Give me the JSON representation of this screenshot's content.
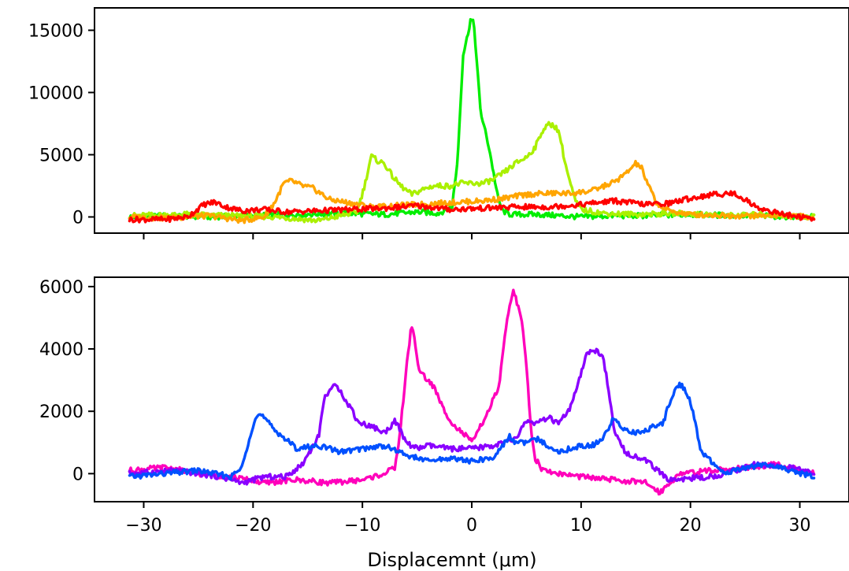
{
  "chart_data": [
    {
      "type": "line",
      "title": "",
      "xlabel": "",
      "ylabel": "",
      "xlim": [
        -34.5,
        34.5
      ],
      "ylim": [
        -1300,
        16800
      ],
      "xticks": [
        -30,
        -20,
        -10,
        0,
        10,
        20,
        30
      ],
      "xtick_labels_visible": false,
      "yticks": [
        0,
        5000,
        10000,
        15000
      ],
      "ytick_labels": [
        "0",
        "5000",
        "10000",
        "15000"
      ],
      "grid": false,
      "legend": "none",
      "series": [
        {
          "color": "#00ee00",
          "x": [
            -31.3,
            -28,
            -24,
            -20,
            -16,
            -12,
            -8,
            -5,
            -3,
            -1.8,
            -1.3,
            -0.8,
            -0.4,
            -0.1,
            0.2,
            0.5,
            0.8,
            1.2,
            1.6,
            2.0,
            2.4,
            2.8,
            3.5,
            6,
            10,
            13,
            16,
            20,
            25,
            31.3
          ],
          "y": [
            0,
            100,
            0,
            100,
            200,
            300,
            200,
            400,
            300,
            800,
            4500,
            13000,
            14500,
            15900,
            15500,
            12000,
            8500,
            7000,
            5500,
            3500,
            1500,
            500,
            200,
            200,
            0,
            100,
            100,
            200,
            100,
            0
          ]
        },
        {
          "color": "#aaf000",
          "x": [
            -31.3,
            -26,
            -22,
            -18,
            -14,
            -10.5,
            -9.8,
            -9.2,
            -8.6,
            -8,
            -7.2,
            -6.5,
            -5.5,
            -4.5,
            -3.5,
            -2,
            -1,
            0,
            1,
            2,
            3,
            4,
            5,
            5.8,
            6.5,
            7,
            7.5,
            8,
            8.5,
            9,
            9.5,
            10,
            12,
            15,
            19,
            23,
            27,
            31.3
          ],
          "y": [
            100,
            200,
            100,
            0,
            -300,
            400,
            2500,
            4900,
            4500,
            4300,
            3200,
            2500,
            1800,
            2200,
            2500,
            2500,
            2700,
            2700,
            2700,
            3000,
            3600,
            4300,
            4800,
            5600,
            7000,
            7400,
            7400,
            6800,
            4500,
            2700,
            1200,
            600,
            300,
            200,
            300,
            100,
            200,
            0
          ]
        },
        {
          "color": "#ffa500",
          "x": [
            -31.3,
            -28,
            -24,
            -21,
            -19,
            -18,
            -17.2,
            -16.5,
            -15.5,
            -14.5,
            -13,
            -11,
            -9,
            -7,
            -5,
            -3,
            -1,
            1,
            3,
            5,
            7,
            9,
            11,
            13,
            14,
            15,
            15.5,
            16,
            17,
            18,
            20,
            24,
            28,
            31.3
          ],
          "y": [
            0,
            -100,
            100,
            -300,
            0,
            1200,
            2700,
            2900,
            2500,
            2300,
            1400,
            1100,
            800,
            900,
            1000,
            1100,
            1200,
            1300,
            1500,
            1800,
            1900,
            1900,
            2100,
            2800,
            3400,
            4300,
            4000,
            2800,
            1000,
            500,
            200,
            100,
            100,
            0
          ]
        },
        {
          "color": "#ff0000",
          "x": [
            -31.3,
            -28,
            -26,
            -24.5,
            -23.5,
            -22.5,
            -21,
            -19,
            -17,
            -14,
            -11,
            -8,
            -5,
            -2,
            1,
            4,
            7,
            10,
            13,
            16,
            18,
            20,
            22,
            24,
            25,
            26,
            28,
            31.3
          ],
          "y": [
            -200,
            -200,
            0,
            1000,
            1200,
            800,
            500,
            600,
            400,
            500,
            600,
            700,
            900,
            600,
            700,
            800,
            800,
            1000,
            1300,
            1000,
            1100,
            1500,
            1800,
            1900,
            1400,
            800,
            300,
            -200
          ]
        }
      ]
    },
    {
      "type": "line",
      "title": "",
      "xlabel": "Displacemnt (μm)",
      "ylabel": "",
      "xlim": [
        -34.5,
        34.5
      ],
      "ylim": [
        -900,
        6300
      ],
      "xticks": [
        -30,
        -20,
        -10,
        0,
        10,
        20,
        30
      ],
      "xtick_labels": [
        "−30",
        "−20",
        "−10",
        "0",
        "10",
        "20",
        "30"
      ],
      "yticks": [
        0,
        2000,
        4000,
        6000
      ],
      "ytick_labels": [
        "0",
        "2000",
        "4000",
        "6000"
      ],
      "grid": false,
      "legend": "none",
      "series": [
        {
          "color": "#ff00bb",
          "x": [
            -31.3,
            -28,
            -25,
            -22,
            -19,
            -16,
            -13,
            -10,
            -8,
            -7,
            -6.5,
            -6,
            -5.5,
            -5.2,
            -4.8,
            -4.3,
            -3.5,
            -2.5,
            -1.5,
            -0.5,
            0,
            0.5,
            1.5,
            2.5,
            3,
            3.5,
            3.8,
            4.2,
            4.6,
            5,
            5.4,
            5.8,
            6.5,
            8,
            10,
            13,
            16,
            17.2,
            19,
            22,
            25,
            28,
            31.3
          ],
          "y": [
            100,
            200,
            0,
            -100,
            -300,
            -200,
            -300,
            -200,
            0,
            200,
            1500,
            3300,
            4800,
            4200,
            3300,
            3100,
            2800,
            2000,
            1500,
            1200,
            1000,
            1300,
            2000,
            2800,
            4300,
            5500,
            5900,
            5400,
            4800,
            3500,
            1500,
            500,
            100,
            0,
            -100,
            -200,
            -300,
            -600,
            0,
            100,
            200,
            300,
            0
          ]
        },
        {
          "color": "#8a00ff",
          "x": [
            -31.3,
            -27,
            -23,
            -21,
            -19,
            -17,
            -15.5,
            -14,
            -13.5,
            -13,
            -12.5,
            -12,
            -11.5,
            -11,
            -10.5,
            -10,
            -9,
            -8,
            -7,
            -6,
            -5,
            -4,
            -2,
            0,
            2,
            4,
            5,
            6,
            7,
            8,
            9,
            9.5,
            10,
            10.5,
            11,
            11.5,
            12,
            12.5,
            13,
            14,
            16,
            18,
            22,
            26,
            29,
            31.3
          ],
          "y": [
            0,
            100,
            -100,
            -300,
            -100,
            -100,
            300,
            1200,
            2400,
            2700,
            2800,
            2700,
            2300,
            2100,
            1700,
            1600,
            1500,
            1300,
            1700,
            1000,
            800,
            900,
            800,
            800,
            900,
            1100,
            1700,
            1600,
            1800,
            1600,
            2100,
            2600,
            3200,
            3800,
            4000,
            3900,
            3800,
            2700,
            1400,
            700,
            400,
            -200,
            -100,
            300,
            200,
            0
          ]
        },
        {
          "color": "#0050ff",
          "x": [
            -31.3,
            -28,
            -25,
            -22,
            -21,
            -20.3,
            -19.8,
            -19.3,
            -18.8,
            -18,
            -17,
            -16,
            -14,
            -12,
            -10,
            -8,
            -6,
            -4,
            -2,
            0,
            2,
            3,
            3.5,
            4,
            5,
            6,
            7,
            8,
            9,
            10,
            11,
            12,
            13,
            14,
            15,
            16,
            17,
            17.5,
            18,
            18.5,
            19,
            19.5,
            20,
            21,
            23,
            25,
            27,
            29,
            31.3
          ],
          "y": [
            -100,
            0,
            100,
            -100,
            200,
            1200,
            1800,
            1900,
            1700,
            1400,
            1100,
            800,
            900,
            700,
            800,
            900,
            600,
            400,
            500,
            400,
            500,
            1000,
            1200,
            1000,
            1000,
            1100,
            900,
            700,
            800,
            900,
            900,
            1100,
            1800,
            1400,
            1300,
            1400,
            1600,
            1600,
            2200,
            2600,
            2900,
            2700,
            2300,
            700,
            0,
            200,
            300,
            100,
            -100
          ]
        }
      ]
    }
  ]
}
